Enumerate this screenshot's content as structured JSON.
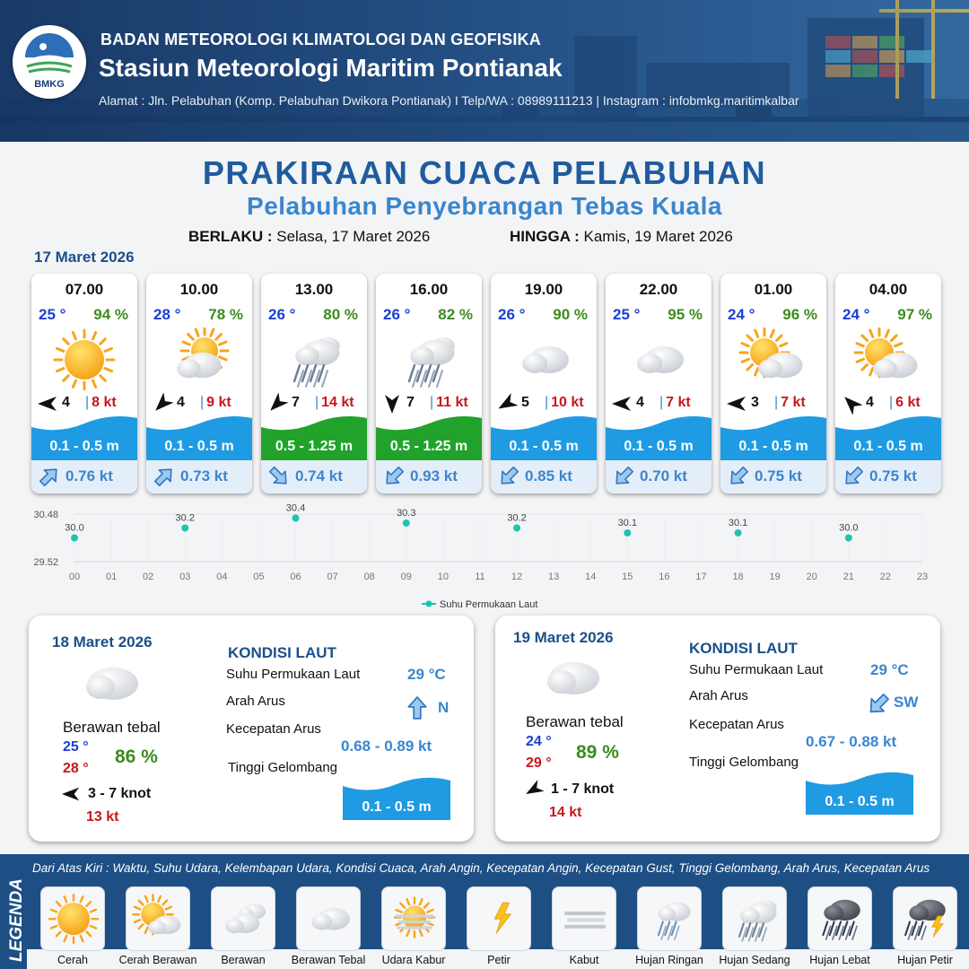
{
  "header": {
    "logo_text": "BMKG",
    "organization": "BADAN METEOROLOGI KLIMATOLOGI DAN GEOFISIKA",
    "station": "Stasiun Meteorologi Maritim Pontianak",
    "address": "Alamat : Jln. Pelabuhan (Komp. Pelabuhan Dwikora Pontianak) I Telp/WA : 08989111213 | Instagram : infobmkg.maritimkalbar"
  },
  "title": "PRAKIRAAN CUACA PELABUHAN",
  "subtitle": "Pelabuhan Penyebrangan Tebas Kuala",
  "validity": {
    "from_label": "BERLAKU :",
    "from_value": "Selasa, 17 Maret 2026",
    "to_label": "HINGGA :",
    "to_value": "Kamis, 19 Maret 2026"
  },
  "day1_date": "17 Maret 2026",
  "colors": {
    "primary": "#1f5c9e",
    "accent": "#3a86cf",
    "wave_low": "#1f9be3",
    "wave_mid": "#21a32b",
    "temp": "#1c3ed4",
    "humidity": "#3f8a1f",
    "gust": "#c8161d"
  },
  "forecast": [
    {
      "time": "07.00",
      "temp": "25 °",
      "humidity": "94 %",
      "icon": "cerah-icon",
      "wind_dir_deg": 270,
      "wind_speed": "4",
      "gust": "8 kt",
      "wave": "0.1 - 0.5 m",
      "wave_level": "low",
      "current_dir_deg": 45,
      "current_speed": "0.76 kt"
    },
    {
      "time": "10.00",
      "temp": "28 °",
      "humidity": "78 %",
      "icon": "berawan-tebal-sun-icon",
      "wind_dir_deg": 225,
      "wind_speed": "4",
      "gust": "9 kt",
      "wave": "0.1 - 0.5 m",
      "wave_level": "low",
      "current_dir_deg": 45,
      "current_speed": "0.73 kt"
    },
    {
      "time": "13.00",
      "temp": "26 °",
      "humidity": "80 %",
      "icon": "hujan-sedang-icon",
      "wind_dir_deg": 225,
      "wind_speed": "7",
      "gust": "14 kt",
      "wave": "0.5 - 1.25 m",
      "wave_level": "mid",
      "current_dir_deg": 135,
      "current_speed": "0.74 kt"
    },
    {
      "time": "16.00",
      "temp": "26 °",
      "humidity": "82 %",
      "icon": "hujan-sedang-icon",
      "wind_dir_deg": 180,
      "wind_speed": "7",
      "gust": "11 kt",
      "wave": "0.5 - 1.25 m",
      "wave_level": "mid",
      "current_dir_deg": 225,
      "current_speed": "0.93 kt"
    },
    {
      "time": "19.00",
      "temp": "26 °",
      "humidity": "90 %",
      "icon": "berawan-tebal-icon",
      "wind_dir_deg": 240,
      "wind_speed": "5",
      "gust": "10 kt",
      "wave": "0.1 - 0.5 m",
      "wave_level": "low",
      "current_dir_deg": 225,
      "current_speed": "0.85 kt"
    },
    {
      "time": "22.00",
      "temp": "25 °",
      "humidity": "95 %",
      "icon": "berawan-tebal-icon",
      "wind_dir_deg": 270,
      "wind_speed": "4",
      "gust": "7 kt",
      "wave": "0.1 - 0.5 m",
      "wave_level": "low",
      "current_dir_deg": 225,
      "current_speed": "0.70 kt"
    },
    {
      "time": "01.00",
      "temp": "24 °",
      "humidity": "96 %",
      "icon": "berawan-sun-icon",
      "wind_dir_deg": 270,
      "wind_speed": "3",
      "gust": "7 kt",
      "wave": "0.1 - 0.5 m",
      "wave_level": "low",
      "current_dir_deg": 225,
      "current_speed": "0.75 kt"
    },
    {
      "time": "04.00",
      "temp": "24 °",
      "humidity": "97 %",
      "icon": "berawan-sun-icon",
      "wind_dir_deg": 315,
      "wind_speed": "4",
      "gust": "6 kt",
      "wave": "0.1 - 0.5 m",
      "wave_level": "low",
      "current_dir_deg": 225,
      "current_speed": "0.75 kt"
    }
  ],
  "chart_data": {
    "type": "scatter",
    "series": [
      {
        "name": "Suhu Permukaan Laut",
        "color": "#1fc3b0",
        "x": [
          0,
          3,
          6,
          9,
          12,
          15,
          18,
          21
        ],
        "values": [
          30.0,
          30.2,
          30.4,
          30.3,
          30.2,
          30.1,
          30.1,
          30.0
        ]
      }
    ],
    "data_labels": [
      "30.0",
      "30.2",
      "30.4",
      "30.3",
      "30.2",
      "30.1",
      "30.1",
      "30.0"
    ],
    "x_ticks": [
      "00",
      "01",
      "02",
      "03",
      "04",
      "05",
      "06",
      "07",
      "08",
      "09",
      "10",
      "11",
      "12",
      "13",
      "14",
      "15",
      "16",
      "17",
      "18",
      "19",
      "20",
      "21",
      "22",
      "23"
    ],
    "y_ticks": [
      "30.48",
      "29.52"
    ],
    "ylim": [
      29.52,
      30.48
    ],
    "xlim": [
      0,
      23
    ],
    "grid": true,
    "legend": "bottom-center"
  },
  "day2": {
    "date": "18 Maret 2026",
    "condition": "Berawan tebal",
    "temp_min": "25 °",
    "temp_max": "28 °",
    "humidity": "86 %",
    "wind": "3  - 7 knot",
    "wind_dir_deg": 270,
    "gust": "13 kt",
    "sea_title": "KONDISI LAUT",
    "sst_label": "Suhu Permukaan Laut",
    "sst_value": "29 °C",
    "current_dir_label": "Arah Arus",
    "current_dir_value": "N",
    "current_dir_deg": 0,
    "current_speed_label": "Kecepatan Arus",
    "current_speed_value": "0.68 - 0.89 kt",
    "wave_label": "Tinggi Gelombang",
    "wave_value": "0.1 - 0.5 m"
  },
  "day3": {
    "date": "19 Maret 2026",
    "condition": "Berawan tebal",
    "temp_min": "24 °",
    "temp_max": "29 °",
    "humidity": "89 %",
    "wind": "1  - 7 knot",
    "wind_dir_deg": 240,
    "gust": "14 kt",
    "sea_title": "KONDISI LAUT",
    "sst_label": "Suhu Permukaan Laut",
    "sst_value": "29 °C",
    "current_dir_label": "Arah Arus",
    "current_dir_value": "SW",
    "current_dir_deg": 225,
    "current_speed_label": "Kecepatan Arus",
    "current_speed_value": "0.67 - 0.88 kt",
    "wave_label": "Tinggi Gelombang",
    "wave_value": "0.1 - 0.5 m"
  },
  "legend": {
    "title": "LEGENDA",
    "description": "Dari Atas Kiri : Waktu, Suhu Udara, Kelembapan Udara, Kondisi Cuaca, Arah Angin, Kecepatan Angin, Kecepatan Gust, Tinggi Gelombang, Arah Arus, Kecepatan Arus",
    "items": [
      {
        "label": "Cerah",
        "icon": "cerah-icon"
      },
      {
        "label": "Cerah Berawan",
        "icon": "cerah-berawan-icon"
      },
      {
        "label": "Berawan",
        "icon": "berawan-icon"
      },
      {
        "label": "Berawan Tebal",
        "icon": "berawan-tebal-icon"
      },
      {
        "label": "Udara Kabur",
        "icon": "udara-kabur-icon"
      },
      {
        "label": "Petir",
        "icon": "petir-icon"
      },
      {
        "label": "Kabut",
        "icon": "kabut-icon"
      },
      {
        "label": "Hujan Ringan",
        "icon": "hujan-ringan-icon"
      },
      {
        "label": "Hujan Sedang",
        "icon": "hujan-sedang-icon"
      },
      {
        "label": "Hujan Lebat",
        "icon": "hujan-lebat-icon"
      },
      {
        "label": "Hujan Petir",
        "icon": "hujan-petir-icon"
      }
    ]
  }
}
